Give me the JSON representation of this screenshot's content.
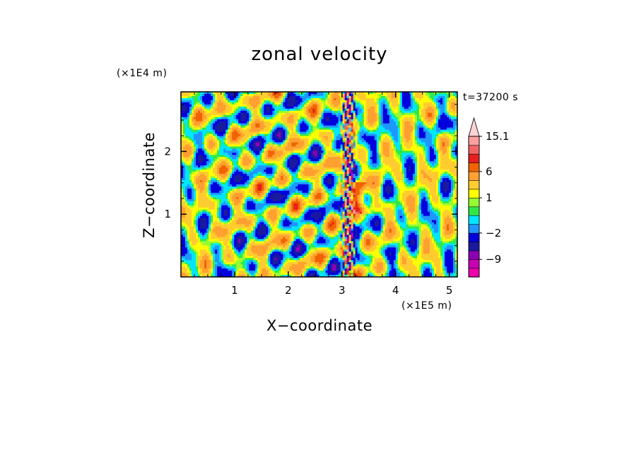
{
  "chart_data": {
    "type": "heatmap",
    "title": "zonal velocity",
    "xlabel": "X−coordinate",
    "ylabel": "Z−coordinate",
    "x_unit": "(×1E5 m)",
    "y_unit": "(×1E4 m)",
    "time_label": "t=37200 s",
    "xlim": [
      0,
      5.15
    ],
    "ylim": [
      0,
      2.95
    ],
    "x_ticks": [
      1,
      2,
      3,
      4,
      5
    ],
    "y_ticks": [
      1,
      2
    ],
    "x_tick_labels": [
      "1",
      "2",
      "3",
      "4",
      "5"
    ],
    "y_tick_labels": [
      "1",
      "2"
    ],
    "colorbar": {
      "levels": [
        -15,
        -12,
        -9,
        -6,
        -4,
        -2,
        -1,
        0,
        0.5,
        1,
        2,
        4,
        6,
        8,
        10,
        12,
        15.1
      ],
      "colors": [
        "#ee00aa",
        "#c800b4",
        "#8c00b4",
        "#1a1aa0",
        "#0000dc",
        "#1e96ff",
        "#00e6ff",
        "#30e84a",
        "#96ff32",
        "#ffff00",
        "#ffcc30",
        "#ffa030",
        "#f06400",
        "#e61e1e",
        "#f06464",
        "#ffa0a0",
        "#ffd2d2"
      ],
      "labels": [
        "15.1",
        "6",
        "1",
        "−2",
        "−9"
      ],
      "label_values": [
        15.1,
        6,
        1,
        -2,
        -9
      ],
      "extend": "max"
    }
  }
}
